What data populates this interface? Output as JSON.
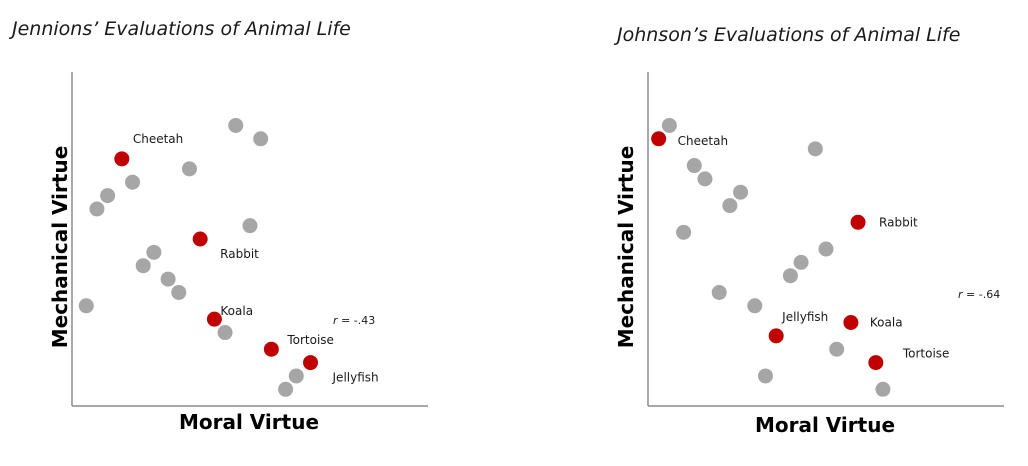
{
  "colors": {
    "highlight": "#c00000",
    "other": "#a6a6a6",
    "axis": "#8c8c8c"
  },
  "chart_data": [
    {
      "type": "scatter",
      "title": "Jennions’ Evaluations of Animal Life",
      "xlabel": "Moral Virtue",
      "ylabel": "Mechanical Virtue",
      "xlim": [
        0,
        100
      ],
      "ylim": [
        0,
        100
      ],
      "grid": false,
      "annotation": "r = -.43",
      "points": [
        {
          "x": 14,
          "y": 74,
          "label": "Cheetah",
          "highlight": true
        },
        {
          "x": 36,
          "y": 50,
          "label": "Rabbit",
          "highlight": true
        },
        {
          "x": 40,
          "y": 26,
          "label": "Koala",
          "highlight": true
        },
        {
          "x": 56,
          "y": 17,
          "label": "Tortoise",
          "highlight": true
        },
        {
          "x": 67,
          "y": 13,
          "label": "Jellyfish",
          "highlight": true
        },
        {
          "x": 46,
          "y": 84,
          "label": "",
          "highlight": false
        },
        {
          "x": 53,
          "y": 80,
          "label": "",
          "highlight": false
        },
        {
          "x": 33,
          "y": 71,
          "label": "",
          "highlight": false
        },
        {
          "x": 17,
          "y": 67,
          "label": "",
          "highlight": false
        },
        {
          "x": 10,
          "y": 63,
          "label": "",
          "highlight": false
        },
        {
          "x": 7,
          "y": 59,
          "label": "",
          "highlight": false
        },
        {
          "x": 50,
          "y": 54,
          "label": "",
          "highlight": false
        },
        {
          "x": 23,
          "y": 46,
          "label": "",
          "highlight": false
        },
        {
          "x": 20,
          "y": 42,
          "label": "",
          "highlight": false
        },
        {
          "x": 27,
          "y": 38,
          "label": "",
          "highlight": false
        },
        {
          "x": 30,
          "y": 34,
          "label": "",
          "highlight": false
        },
        {
          "x": 4,
          "y": 30,
          "label": "",
          "highlight": false
        },
        {
          "x": 43,
          "y": 22,
          "label": "",
          "highlight": false
        },
        {
          "x": 63,
          "y": 9,
          "label": "",
          "highlight": false
        },
        {
          "x": 60,
          "y": 5,
          "label": "",
          "highlight": false
        }
      ]
    },
    {
      "type": "scatter",
      "title": "Johnson’s Evaluations of Animal Life",
      "xlabel": "Moral Virtue",
      "ylabel": "Mechanical Virtue",
      "xlim": [
        0,
        100
      ],
      "ylim": [
        0,
        100
      ],
      "grid": false,
      "annotation": "r = -.64",
      "points": [
        {
          "x": 3,
          "y": 80,
          "label": "Cheetah",
          "highlight": true
        },
        {
          "x": 59,
          "y": 55,
          "label": "Rabbit",
          "highlight": true
        },
        {
          "x": 57,
          "y": 25,
          "label": "Koala",
          "highlight": true
        },
        {
          "x": 36,
          "y": 21,
          "label": "Jellyfish",
          "highlight": true
        },
        {
          "x": 64,
          "y": 13,
          "label": "Tortoise",
          "highlight": true
        },
        {
          "x": 6,
          "y": 84,
          "label": "",
          "highlight": false
        },
        {
          "x": 47,
          "y": 77,
          "label": "",
          "highlight": false
        },
        {
          "x": 13,
          "y": 72,
          "label": "",
          "highlight": false
        },
        {
          "x": 16,
          "y": 68,
          "label": "",
          "highlight": false
        },
        {
          "x": 26,
          "y": 64,
          "label": "",
          "highlight": false
        },
        {
          "x": 23,
          "y": 60,
          "label": "",
          "highlight": false
        },
        {
          "x": 10,
          "y": 52,
          "label": "",
          "highlight": false
        },
        {
          "x": 50,
          "y": 47,
          "label": "",
          "highlight": false
        },
        {
          "x": 43,
          "y": 43,
          "label": "",
          "highlight": false
        },
        {
          "x": 40,
          "y": 39,
          "label": "",
          "highlight": false
        },
        {
          "x": 20,
          "y": 34,
          "label": "",
          "highlight": false
        },
        {
          "x": 30,
          "y": 30,
          "label": "",
          "highlight": false
        },
        {
          "x": 53,
          "y": 17,
          "label": "",
          "highlight": false
        },
        {
          "x": 33,
          "y": 9,
          "label": "",
          "highlight": false
        },
        {
          "x": 66,
          "y": 5,
          "label": "",
          "highlight": false
        }
      ]
    }
  ]
}
